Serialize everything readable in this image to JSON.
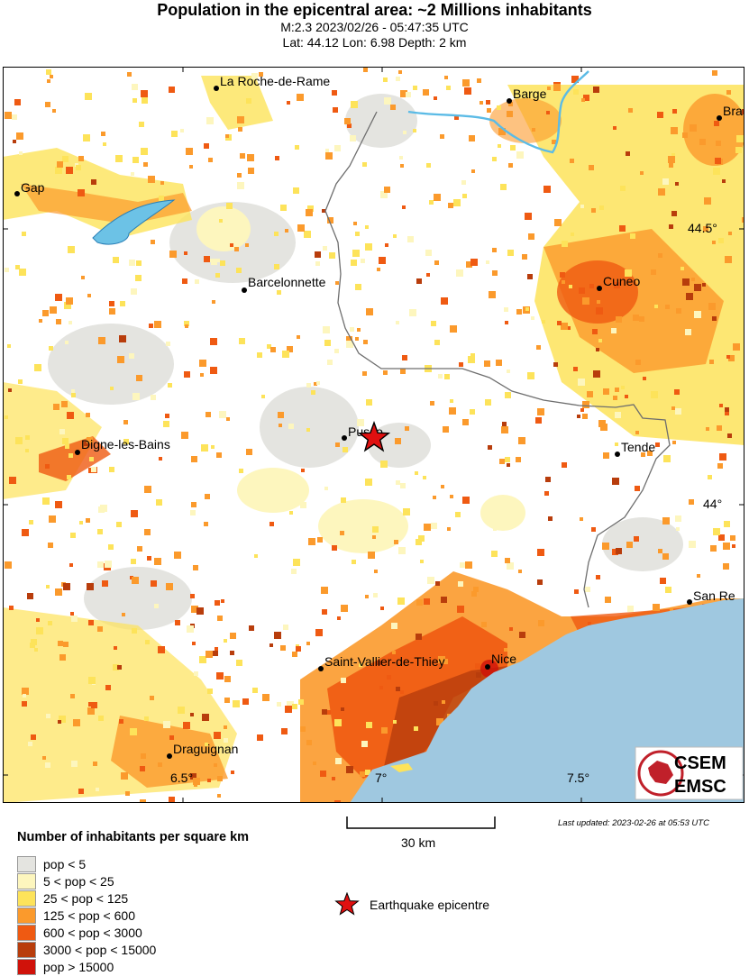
{
  "header": {
    "title": "Population in the epicentral area: ~2 Millions inhabitants",
    "line1": "M:2.3 2023/02/26 - 05:47:35 UTC",
    "line2": "Lat: 44.12 Lon: 6.98 Depth: 2 km"
  },
  "map": {
    "cities": [
      {
        "name": "La Roche-de-Rame"
      },
      {
        "name": "Barge"
      },
      {
        "name": "Bra"
      },
      {
        "name": "Gap"
      },
      {
        "name": "Barcelonnette"
      },
      {
        "name": "Cuneo"
      },
      {
        "name": "Pusso"
      },
      {
        "name": "Digne-les-Bains"
      },
      {
        "name": "Tende"
      },
      {
        "name": "San Re"
      },
      {
        "name": "Saint-Vallier-de-Thiey"
      },
      {
        "name": "Nice"
      },
      {
        "name": "Draguignan"
      }
    ],
    "lat_labels": [
      "44.5°",
      "44°"
    ],
    "lon_labels": [
      "6.5°",
      "7°",
      "7.5°"
    ],
    "logo": {
      "line1": "CSEM",
      "line2": "EMSC"
    }
  },
  "scale_bar": {
    "label": "30 km"
  },
  "updated": "Last updated: 2023-02-26 at 05:53 UTC",
  "legend": {
    "title": "Number of inhabitants per square km",
    "items": [
      {
        "label": "pop < 5",
        "color": "#e4e4e0"
      },
      {
        "label": "5 < pop < 25",
        "color": "#fdf6be"
      },
      {
        "label": "25 < pop < 125",
        "color": "#fde35a"
      },
      {
        "label": "125 < pop < 600",
        "color": "#fb9a2c"
      },
      {
        "label": "600 < pop < 3000",
        "color": "#ef5a12"
      },
      {
        "label": "3000 < pop < 15000",
        "color": "#b83d0c"
      },
      {
        "label": "pop > 15000",
        "color": "#d0120a"
      }
    ],
    "epicentre_label": "Earthquake epicentre"
  },
  "colors": {
    "sea": "#9fc8e0",
    "lake": "#6cc2e6",
    "border": "#6e6e6e",
    "star": "#e01010"
  }
}
